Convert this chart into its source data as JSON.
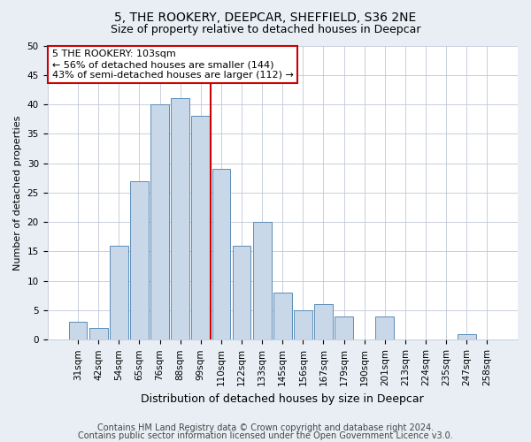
{
  "title1": "5, THE ROOKERY, DEEPCAR, SHEFFIELD, S36 2NE",
  "title2": "Size of property relative to detached houses in Deepcar",
  "xlabel": "Distribution of detached houses by size in Deepcar",
  "ylabel": "Number of detached properties",
  "bar_labels": [
    "31sqm",
    "42sqm",
    "54sqm",
    "65sqm",
    "76sqm",
    "88sqm",
    "99sqm",
    "110sqm",
    "122sqm",
    "133sqm",
    "145sqm",
    "156sqm",
    "167sqm",
    "179sqm",
    "190sqm",
    "201sqm",
    "213sqm",
    "224sqm",
    "235sqm",
    "247sqm",
    "258sqm"
  ],
  "bar_values": [
    3,
    2,
    16,
    27,
    40,
    41,
    38,
    29,
    16,
    20,
    8,
    5,
    6,
    4,
    0,
    4,
    0,
    0,
    0,
    1,
    0
  ],
  "bar_color": "#c8d8e8",
  "bar_edge_color": "#5b8db8",
  "vline_x_index": 7,
  "vline_color": "#cc0000",
  "annotation_title": "5 THE ROOKERY: 103sqm",
  "annotation_line1": "← 56% of detached houses are smaller (144)",
  "annotation_line2": "43% of semi-detached houses are larger (112) →",
  "annotation_box_color": "#ffffff",
  "annotation_box_edge_color": "#cc0000",
  "ylim": [
    0,
    50
  ],
  "yticks": [
    0,
    5,
    10,
    15,
    20,
    25,
    30,
    35,
    40,
    45,
    50
  ],
  "footer1": "Contains HM Land Registry data © Crown copyright and database right 2024.",
  "footer2": "Contains public sector information licensed under the Open Government Licence v3.0.",
  "bg_color": "#e8eef4",
  "plot_bg_color": "#ffffff",
  "grid_color": "#c0c8d8",
  "title1_fontsize": 10,
  "title2_fontsize": 9,
  "xlabel_fontsize": 9,
  "ylabel_fontsize": 8,
  "tick_fontsize": 7.5,
  "footer_fontsize": 7,
  "annotation_fontsize": 8
}
